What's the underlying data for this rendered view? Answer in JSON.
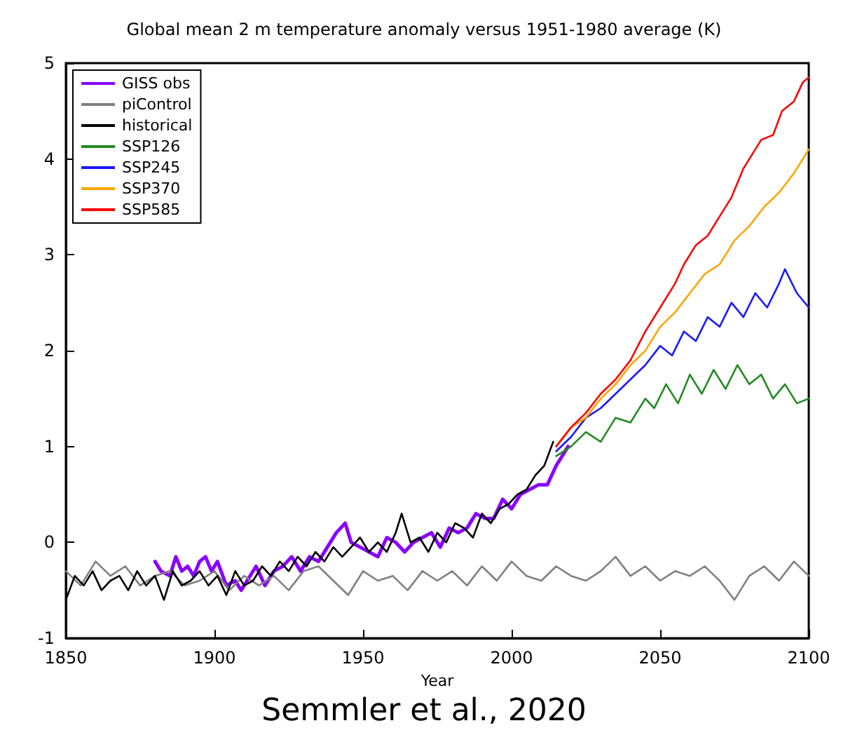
{
  "chart_data": {
    "type": "line",
    "title": "Global mean 2 m temperature anomaly versus 1951-1980 average (K)",
    "xlabel": "Year",
    "annotations": [
      "Semmler et al., 2020"
    ],
    "xlim": [
      1850,
      2100
    ],
    "xticks": [
      1850,
      1900,
      1950,
      2000,
      2050,
      2100
    ],
    "ylim": [
      -1,
      5
    ],
    "yticks": [
      -1,
      0,
      1,
      2,
      3,
      4,
      5
    ],
    "grid": false,
    "legend": "top left",
    "marker": "none",
    "line_style": "solid",
    "series": [
      {
        "name": "GISS obs",
        "color": "#8b00ff",
        "x": [
          1880,
          1882,
          1885,
          1887,
          1889,
          1891,
          1893,
          1895,
          1897,
          1899,
          1901,
          1904,
          1907,
          1909,
          1911,
          1914,
          1917,
          1920,
          1923,
          1926,
          1929,
          1932,
          1935,
          1938,
          1941,
          1944,
          1946,
          1949,
          1952,
          1955,
          1958,
          1961,
          1964,
          1967,
          1970,
          1973,
          1976,
          1979,
          1982,
          1985,
          1988,
          1991,
          1994,
          1997,
          2000,
          2003,
          2006,
          2009,
          2012,
          2015,
          2017,
          2019
        ],
        "values": [
          -0.2,
          -0.3,
          -0.35,
          -0.15,
          -0.3,
          -0.25,
          -0.35,
          -0.2,
          -0.15,
          -0.3,
          -0.2,
          -0.45,
          -0.4,
          -0.5,
          -0.4,
          -0.25,
          -0.45,
          -0.3,
          -0.25,
          -0.15,
          -0.3,
          -0.15,
          -0.2,
          -0.05,
          0.1,
          0.2,
          0.0,
          -0.05,
          -0.1,
          -0.15,
          0.05,
          0.0,
          -0.1,
          0.0,
          0.05,
          0.1,
          -0.05,
          0.15,
          0.1,
          0.15,
          0.3,
          0.25,
          0.25,
          0.45,
          0.35,
          0.5,
          0.55,
          0.6,
          0.6,
          0.8,
          0.9,
          1.0
        ]
      },
      {
        "name": "piControl",
        "color": "#808080",
        "x": [
          1850,
          1855,
          1860,
          1865,
          1870,
          1875,
          1880,
          1885,
          1890,
          1895,
          1900,
          1905,
          1910,
          1915,
          1920,
          1925,
          1930,
          1935,
          1940,
          1945,
          1950,
          1955,
          1960,
          1965,
          1970,
          1975,
          1980,
          1985,
          1990,
          1995,
          2000,
          2005,
          2010,
          2015,
          2020,
          2025,
          2030,
          2035,
          2040,
          2045,
          2050,
          2055,
          2060,
          2065,
          2070,
          2075,
          2080,
          2085,
          2090,
          2095,
          2100
        ],
        "values": [
          -0.3,
          -0.45,
          -0.2,
          -0.35,
          -0.25,
          -0.45,
          -0.35,
          -0.3,
          -0.45,
          -0.4,
          -0.3,
          -0.5,
          -0.35,
          -0.45,
          -0.35,
          -0.5,
          -0.3,
          -0.25,
          -0.4,
          -0.55,
          -0.3,
          -0.4,
          -0.35,
          -0.5,
          -0.3,
          -0.4,
          -0.3,
          -0.45,
          -0.25,
          -0.4,
          -0.2,
          -0.35,
          -0.4,
          -0.25,
          -0.35,
          -0.4,
          -0.3,
          -0.15,
          -0.35,
          -0.25,
          -0.4,
          -0.3,
          -0.35,
          -0.25,
          -0.4,
          -0.6,
          -0.35,
          -0.25,
          -0.4,
          -0.2,
          -0.35
        ]
      },
      {
        "name": "historical",
        "color": "#000000",
        "x": [
          1850,
          1853,
          1856,
          1859,
          1862,
          1865,
          1868,
          1871,
          1874,
          1877,
          1880,
          1883,
          1886,
          1889,
          1892,
          1895,
          1898,
          1901,
          1904,
          1907,
          1910,
          1913,
          1916,
          1919,
          1922,
          1925,
          1928,
          1931,
          1934,
          1937,
          1940,
          1943,
          1946,
          1949,
          1952,
          1955,
          1958,
          1961,
          1963,
          1966,
          1969,
          1972,
          1975,
          1978,
          1981,
          1984,
          1987,
          1990,
          1993,
          1996,
          1999,
          2002,
          2005,
          2008,
          2011,
          2014
        ],
        "values": [
          -0.6,
          -0.35,
          -0.45,
          -0.3,
          -0.5,
          -0.4,
          -0.35,
          -0.5,
          -0.3,
          -0.45,
          -0.35,
          -0.6,
          -0.3,
          -0.45,
          -0.4,
          -0.3,
          -0.45,
          -0.35,
          -0.55,
          -0.3,
          -0.45,
          -0.4,
          -0.25,
          -0.35,
          -0.2,
          -0.3,
          -0.15,
          -0.25,
          -0.1,
          -0.2,
          -0.05,
          -0.15,
          -0.05,
          0.05,
          -0.1,
          0.0,
          -0.1,
          0.1,
          0.3,
          0.0,
          0.05,
          -0.1,
          0.1,
          0.0,
          0.2,
          0.15,
          0.05,
          0.3,
          0.2,
          0.35,
          0.4,
          0.5,
          0.55,
          0.7,
          0.8,
          1.05
        ]
      },
      {
        "name": "SSP126",
        "color": "#228b22",
        "x": [
          2015,
          2020,
          2025,
          2030,
          2035,
          2040,
          2045,
          2048,
          2052,
          2056,
          2060,
          2064,
          2068,
          2072,
          2076,
          2080,
          2084,
          2088,
          2092,
          2096,
          2100
        ],
        "values": [
          0.9,
          1.0,
          1.15,
          1.05,
          1.3,
          1.25,
          1.5,
          1.4,
          1.65,
          1.45,
          1.75,
          1.55,
          1.8,
          1.6,
          1.85,
          1.65,
          1.75,
          1.5,
          1.65,
          1.45,
          1.5
        ]
      },
      {
        "name": "SSP245",
        "color": "#1a1aff",
        "x": [
          2015,
          2020,
          2025,
          2030,
          2035,
          2040,
          2045,
          2050,
          2054,
          2058,
          2062,
          2066,
          2070,
          2074,
          2078,
          2082,
          2086,
          2090,
          2092,
          2096,
          2100
        ],
        "values": [
          0.95,
          1.1,
          1.3,
          1.4,
          1.55,
          1.7,
          1.85,
          2.05,
          1.95,
          2.2,
          2.1,
          2.35,
          2.25,
          2.5,
          2.35,
          2.6,
          2.45,
          2.7,
          2.85,
          2.6,
          2.45
        ]
      },
      {
        "name": "SSP370",
        "color": "#ffa500",
        "x": [
          2015,
          2020,
          2025,
          2030,
          2035,
          2040,
          2045,
          2050,
          2055,
          2060,
          2065,
          2070,
          2075,
          2080,
          2085,
          2090,
          2095,
          2100
        ],
        "values": [
          1.0,
          1.2,
          1.3,
          1.5,
          1.65,
          1.85,
          2.0,
          2.25,
          2.4,
          2.6,
          2.8,
          2.9,
          3.15,
          3.3,
          3.5,
          3.65,
          3.85,
          4.1
        ]
      },
      {
        "name": "SSP585",
        "color": "#ff0000",
        "x": [
          2015,
          2020,
          2025,
          2030,
          2035,
          2040,
          2045,
          2050,
          2055,
          2058,
          2062,
          2066,
          2070,
          2074,
          2078,
          2081,
          2084,
          2088,
          2091,
          2095,
          2098,
          2100
        ],
        "values": [
          1.0,
          1.2,
          1.35,
          1.55,
          1.7,
          1.9,
          2.2,
          2.45,
          2.7,
          2.9,
          3.1,
          3.2,
          3.4,
          3.6,
          3.9,
          4.05,
          4.2,
          4.25,
          4.5,
          4.6,
          4.8,
          4.85
        ]
      }
    ]
  }
}
